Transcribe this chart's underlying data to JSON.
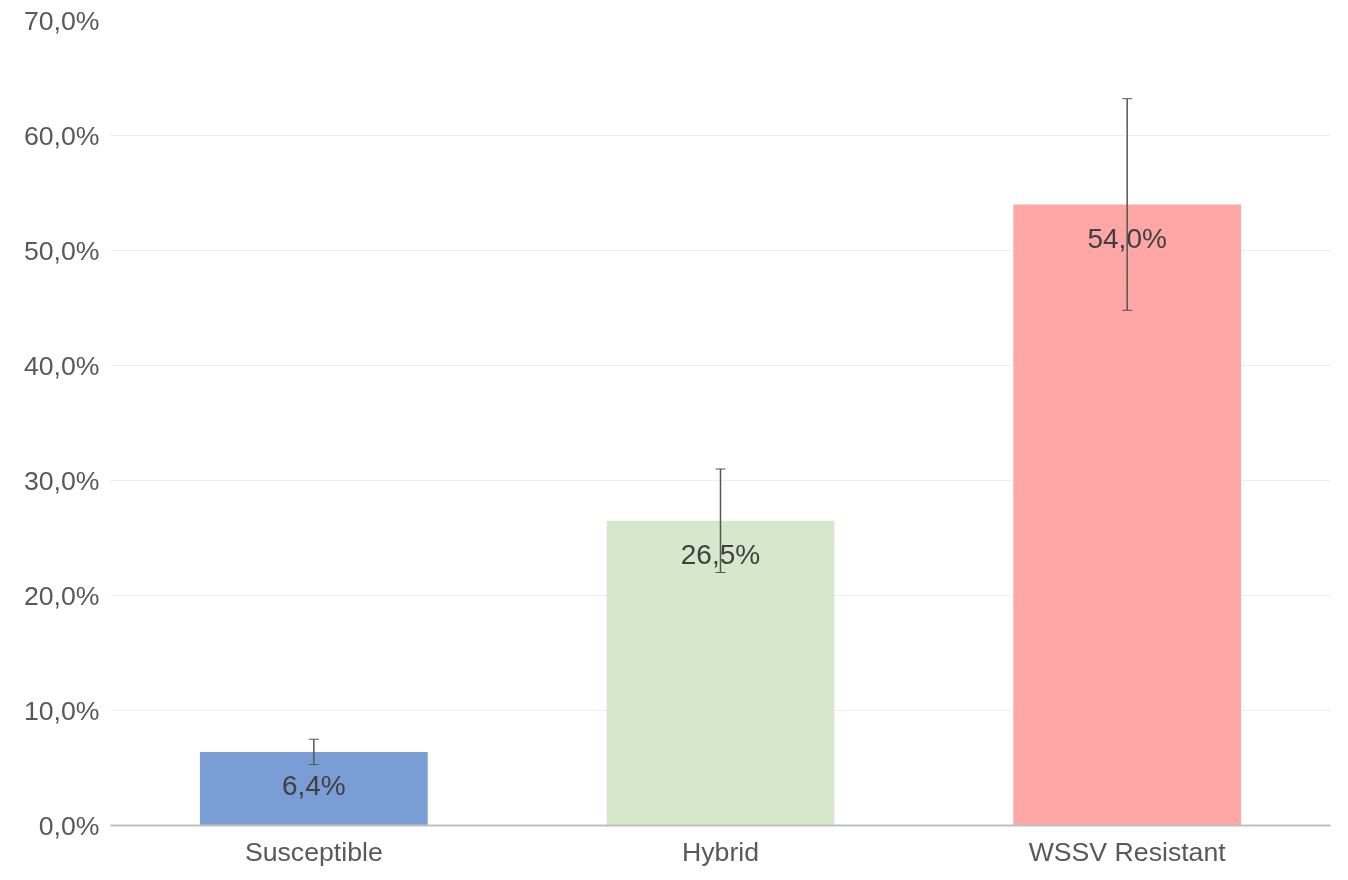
{
  "chart_data": {
    "type": "bar",
    "categories": [
      "Susceptible",
      "Hybrid",
      "WSSV Resistant"
    ],
    "values": [
      6.4,
      26.5,
      54.0
    ],
    "colors": [
      "#7b9dd6",
      "#d5e8cc",
      "#ffa6a6"
    ],
    "errors": [
      1.1,
      4.5,
      9.2
    ],
    "value_labels": [
      "6,4%",
      "26,5%",
      "54,0%"
    ],
    "ylim": [
      0,
      70
    ],
    "yticks": [
      {
        "value": 0,
        "label": "0,0%"
      },
      {
        "value": 10,
        "label": "10,0%"
      },
      {
        "value": 20,
        "label": "20,0%"
      },
      {
        "value": 30,
        "label": "30,0%"
      },
      {
        "value": 40,
        "label": "40,0%"
      },
      {
        "value": 50,
        "label": "50,0%"
      },
      {
        "value": 60,
        "label": "60,0%"
      },
      {
        "value": 70,
        "label": "70,0%"
      }
    ],
    "grid": "y"
  }
}
